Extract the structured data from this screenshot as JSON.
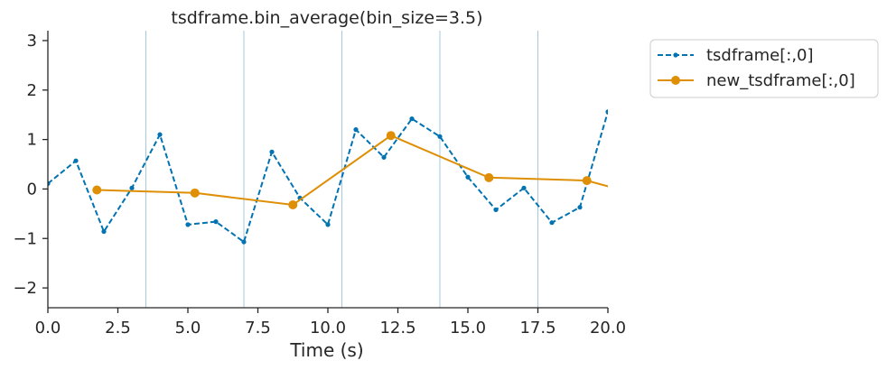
{
  "chart_data": {
    "type": "line",
    "title": "tsdframe.bin_average(bin_size=3.5)",
    "xlabel": "Time (s)",
    "ylabel": "",
    "xlim": [
      0,
      20
    ],
    "ylim": [
      -2.4,
      3.2
    ],
    "x_ticks": [
      0,
      2.5,
      5,
      7.5,
      10,
      12.5,
      15,
      17.5,
      20
    ],
    "x_tick_labels": [
      "0.0",
      "2.5",
      "5.0",
      "7.5",
      "10.0",
      "12.5",
      "15.0",
      "17.5",
      "20.0"
    ],
    "y_ticks": [
      -2,
      -1,
      0,
      1,
      2,
      3
    ],
    "y_tick_labels": [
      "−2",
      "−1",
      "0",
      "1",
      "2",
      "3"
    ],
    "bin_edges": [
      3.5,
      7.0,
      10.5,
      14.0,
      17.5
    ],
    "grid": false,
    "legend_position": "outside-top-right",
    "series": [
      {
        "name": "tsdframe[:,0]",
        "color": "#0173b2",
        "line_style": "dashed",
        "marker": "small-dot",
        "x": [
          0,
          1,
          2,
          3,
          4,
          5,
          6,
          7,
          8,
          9,
          10,
          11,
          12,
          13,
          14,
          15,
          16,
          17,
          18,
          19,
          20
        ],
        "y": [
          0.11,
          0.57,
          -0.86,
          0.02,
          1.1,
          -0.72,
          -0.66,
          -1.07,
          0.75,
          -0.18,
          -0.72,
          1.2,
          0.64,
          1.42,
          1.06,
          0.24,
          -0.42,
          0.02,
          -0.68,
          -0.37,
          1.56
        ]
      },
      {
        "name": "new_tsdframe[:,0]",
        "color": "#de8f05",
        "line_style": "solid",
        "marker": "dot",
        "x": [
          1.75,
          5.25,
          8.75,
          12.25,
          15.75,
          19.25,
          21.0
        ],
        "y": [
          -0.02,
          -0.08,
          -0.32,
          1.08,
          0.23,
          0.17,
          -0.1
        ]
      }
    ]
  },
  "colors": {
    "bin_line": "#a6c8de",
    "axis": "#262626"
  }
}
